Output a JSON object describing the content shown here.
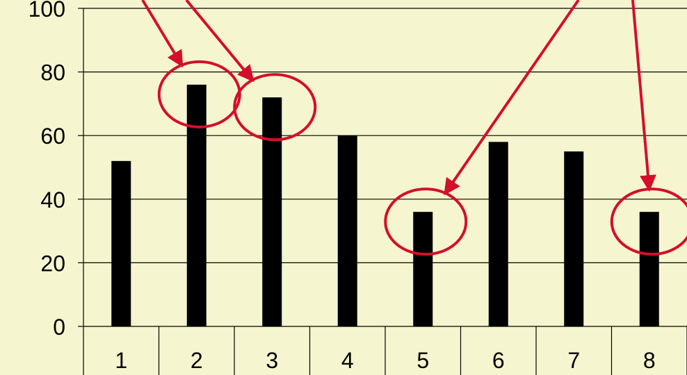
{
  "chart_data": {
    "type": "bar",
    "categories": [
      "1",
      "2",
      "3",
      "4",
      "5",
      "6",
      "7",
      "8"
    ],
    "values": [
      52,
      76,
      72,
      60,
      36,
      58,
      55,
      36
    ],
    "ylim": [
      0,
      100
    ],
    "yticks": [
      0,
      20,
      40,
      60,
      80,
      100
    ],
    "y_tick_labels": [
      "0",
      "20",
      "40",
      "60",
      "80",
      "100"
    ],
    "grid": true,
    "title": "",
    "xlabel": "",
    "ylabel": "",
    "annotations": {
      "type": "circled bars with arrows",
      "highlighted_categories": [
        "2",
        "3",
        "5",
        "8"
      ]
    },
    "colors": {
      "background": "#f5f5cf",
      "bar": "#000000",
      "grid": "#000000",
      "annotation": "#d40f2a"
    }
  }
}
